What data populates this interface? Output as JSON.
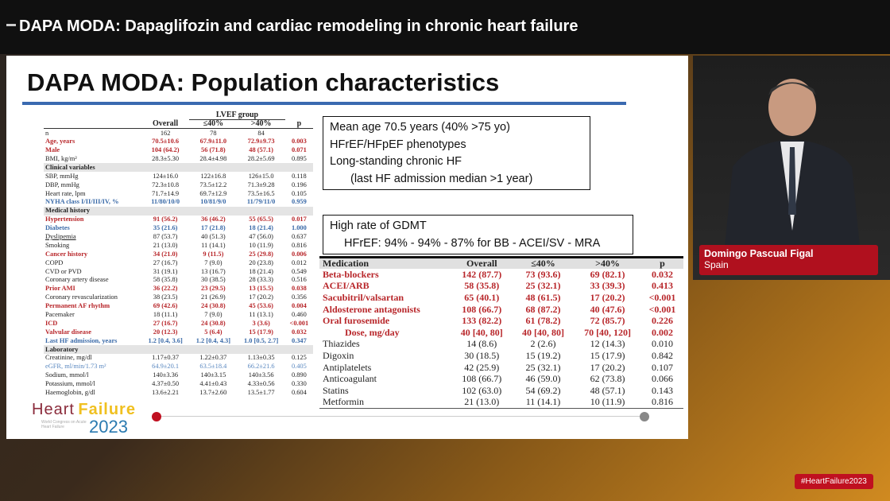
{
  "header": {
    "title": "DAPA MODA: Dapaglifozin and cardiac remodeling in chronic heart failure"
  },
  "slide": {
    "title": "DAPA MODA: Population characteristics",
    "left_table": {
      "group_header": "LVEF group",
      "columns": [
        "",
        "Overall",
        "≤40%",
        ">40%",
        "p"
      ],
      "rows": [
        {
          "s": "",
          "c": [
            "n",
            "162",
            "78",
            "84",
            ""
          ]
        },
        {
          "s": "red",
          "c": [
            "Age, years",
            "70.5±10.6",
            "67.9±11.0",
            "72.9±9.73",
            "0.003"
          ]
        },
        {
          "s": "red",
          "c": [
            "Male",
            "104 (64.2)",
            "56 (71.8)",
            "48 (57.1)",
            "0.071"
          ]
        },
        {
          "s": "",
          "c": [
            "BMI, kg/m²",
            "28.3±5.30",
            "28.4±4.98",
            "28.2±5.69",
            "0.895"
          ]
        },
        {
          "s": "sec",
          "c": [
            "Clinical variables",
            "",
            "",
            "",
            ""
          ]
        },
        {
          "s": "",
          "c": [
            "SBP, mmHg",
            "124±16.0",
            "122±16.8",
            "126±15.0",
            "0.118"
          ]
        },
        {
          "s": "",
          "c": [
            "DBP, mmHg",
            "72.3±10.8",
            "73.5±12.2",
            "71.3±9.28",
            "0.196"
          ]
        },
        {
          "s": "",
          "c": [
            "Heart rate, lpm",
            "71.7±14.9",
            "69.7±12.9",
            "73.5±16.5",
            "0.105"
          ]
        },
        {
          "s": "blue",
          "c": [
            "NYHA class I/II/III/IV, %",
            "11/80/10/0",
            "10/81/9/0",
            "11/79/11/0",
            "0.959"
          ]
        },
        {
          "s": "sec",
          "c": [
            "Medical history",
            "",
            "",
            "",
            ""
          ]
        },
        {
          "s": "red",
          "c": [
            "Hypertension",
            "91 (56.2)",
            "36 (46.2)",
            "55 (65.5)",
            "0.017"
          ]
        },
        {
          "s": "blue",
          "c": [
            "Diabetes",
            "35 (21.6)",
            "17 (21.8)",
            "18 (21.4)",
            "1.000"
          ]
        },
        {
          "s": "",
          "c": [
            "Dyslipemia",
            "87 (53.7)",
            "40 (51.3)",
            "47 (56.0)",
            "0.637"
          ]
        },
        {
          "s": "",
          "c": [
            "Smoking",
            "21 (13.0)",
            "11 (14.1)",
            "10 (11.9)",
            "0.816"
          ]
        },
        {
          "s": "red",
          "c": [
            "Cancer history",
            "34 (21.0)",
            "9 (11.5)",
            "25 (29.8)",
            "0.006"
          ]
        },
        {
          "s": "",
          "c": [
            "COPD",
            "27 (16.7)",
            "7 (9.0)",
            "20 (23.8)",
            "0.012"
          ]
        },
        {
          "s": "",
          "c": [
            "CVD or PVD",
            "31 (19.1)",
            "13 (16.7)",
            "18 (21.4)",
            "0.549"
          ]
        },
        {
          "s": "",
          "c": [
            "Coronary artery disease",
            "58 (35.8)",
            "30 (38.5)",
            "28 (33.3)",
            "0.516"
          ]
        },
        {
          "s": "red",
          "c": [
            "Prior AMI",
            "36 (22.2)",
            "23 (29.5)",
            "13 (15.5)",
            "0.038"
          ]
        },
        {
          "s": "",
          "c": [
            "Coronary revascularization",
            "38 (23.5)",
            "21 (26.9)",
            "17 (20.2)",
            "0.356"
          ]
        },
        {
          "s": "red",
          "c": [
            "Permanent AF rhythm",
            "69 (42.6)",
            "24 (30.8)",
            "45 (53.6)",
            "0.004"
          ]
        },
        {
          "s": "",
          "c": [
            "Pacemaker",
            "18 (11.1)",
            "7 (9.0)",
            "11 (13.1)",
            "0.460"
          ]
        },
        {
          "s": "red",
          "c": [
            "ICD",
            "27 (16.7)",
            "24 (30.8)",
            "3 (3.6)",
            "<0.001"
          ]
        },
        {
          "s": "red",
          "c": [
            "Valvular disease",
            "20 (12.3)",
            "5 (6.4)",
            "15 (17.9)",
            "0.032"
          ]
        },
        {
          "s": "blue",
          "c": [
            "Last HF admission, years",
            "1.2 [0.4, 3.6]",
            "1.2 [0.4, 4.3]",
            "1.0 [0.5, 2.7]",
            "0.347"
          ]
        },
        {
          "s": "sec",
          "c": [
            "Laboratory",
            "",
            "",
            "",
            ""
          ]
        },
        {
          "s": "",
          "c": [
            "Creatinine, mg/dl",
            "1.17±0.37",
            "1.22±0.37",
            "1.13±0.35",
            "0.125"
          ]
        },
        {
          "s": "lblue",
          "c": [
            "eGFR, ml/min/1.73 m²",
            "64.9±20.1",
            "63.5±18.4",
            "66.2±21.6",
            "0.405"
          ]
        },
        {
          "s": "",
          "c": [
            "Sodium, mmol/l",
            "140±3.36",
            "140±3.15",
            "140±3.56",
            "0.890"
          ]
        },
        {
          "s": "",
          "c": [
            "Potassium, mmol/l",
            "4.37±0.50",
            "4.41±0.43",
            "4.33±0.56",
            "0.330"
          ]
        },
        {
          "s": "",
          "c": [
            "Haemoglobin, g/dl",
            "13.6±2.21",
            "13.7±2.60",
            "13.5±1.77",
            "0.604"
          ]
        }
      ]
    },
    "box1": [
      "Mean age 70.5 years (40% >75 yo)",
      "HFrEF/HFpEF phenotypes",
      "Long-standing chronic HF",
      "(last HF admission median >1 year)"
    ],
    "box2": [
      "High rate of GDMT",
      "HFrEF: 94% - 94% - 87% for BB - ACEI/SV - MRA"
    ],
    "right_table": {
      "columns": [
        "Medication",
        "Overall",
        "≤40%",
        ">40%",
        "p"
      ],
      "rows": [
        {
          "s": "red",
          "c": [
            "Beta-blockers",
            "142 (87.7)",
            "73 (93.6)",
            "69 (82.1)",
            "0.032"
          ]
        },
        {
          "s": "red",
          "c": [
            "ACEI/ARB",
            "58 (35.8)",
            "25 (32.1)",
            "33 (39.3)",
            "0.413"
          ]
        },
        {
          "s": "red",
          "c": [
            "Sacubitril/valsartan",
            "65 (40.1)",
            "48 (61.5)",
            "17 (20.2)",
            "<0.001"
          ]
        },
        {
          "s": "red",
          "c": [
            "Aldosterone antagonists",
            "108 (66.7)",
            "68 (87.2)",
            "40 (47.6)",
            "<0.001"
          ]
        },
        {
          "s": "red",
          "c": [
            "Oral furosemide",
            "133 (82.2)",
            "61 (78.2)",
            "72 (85.7)",
            "0.226"
          ]
        },
        {
          "s": "red indent",
          "c": [
            "Dose, mg/day",
            "40 [40, 80]",
            "40 [40, 80]",
            "70 [40, 120]",
            "0.002"
          ]
        },
        {
          "s": "",
          "c": [
            "Thiazides",
            "14 (8.6)",
            "2 (2.6)",
            "12 (14.3)",
            "0.010"
          ]
        },
        {
          "s": "",
          "c": [
            "Digoxin",
            "30 (18.5)",
            "15 (19.2)",
            "15 (17.9)",
            "0.842"
          ]
        },
        {
          "s": "",
          "c": [
            "Antiplatelets",
            "42 (25.9)",
            "25 (32.1)",
            "17 (20.2)",
            "0.107"
          ]
        },
        {
          "s": "",
          "c": [
            "Anticoagulant",
            "108 (66.7)",
            "46 (59.0)",
            "62 (73.8)",
            "0.066"
          ]
        },
        {
          "s": "",
          "c": [
            "Statins",
            "102 (63.0)",
            "54 (69.2)",
            "48 (57.1)",
            "0.143"
          ]
        },
        {
          "s": "",
          "c": [
            "Metformin",
            "21 (13.0)",
            "11 (14.1)",
            "10 (11.9)",
            "0.816"
          ]
        }
      ]
    },
    "logo": {
      "word1": "Heart",
      "word2": "Failure",
      "year": "2023",
      "sub": "World Congress on Acute Heart Failure"
    }
  },
  "speaker": {
    "name": "Domingo Pascual Figal",
    "country": "Spain"
  },
  "hashtag": "#HeartFailure2023",
  "colors": {
    "accent_red": "#b8262a",
    "accent_blue": "#3a6aa8",
    "lower_third": "#b0101e"
  }
}
